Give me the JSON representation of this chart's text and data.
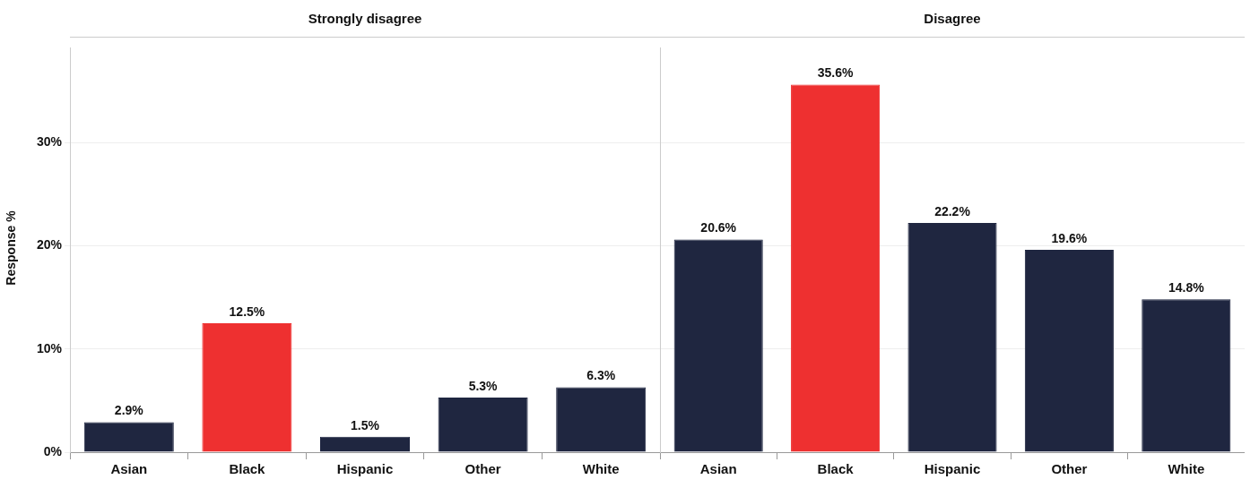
{
  "chart_data": [
    {
      "type": "bar",
      "title": "Strongly disagree",
      "ylabel": "Response %",
      "categories": [
        "Asian",
        "Black",
        "Hispanic",
        "Other",
        "White"
      ],
      "values": [
        2.9,
        12.5,
        1.5,
        5.3,
        6.3
      ],
      "colors": [
        "#1f2640",
        "#ee3030",
        "#1f2640",
        "#1f2640",
        "#1f2640"
      ],
      "value_labels": [
        "2.9%",
        "12.5%",
        "1.5%",
        "5.3%",
        "6.3%"
      ],
      "ylim": [
        0,
        39.2
      ],
      "yticks": [
        {
          "value": 0,
          "label": "0%"
        },
        {
          "value": 10,
          "label": "10%"
        },
        {
          "value": 20,
          "label": "20%"
        },
        {
          "value": 30,
          "label": "30%"
        }
      ],
      "grid": "y",
      "legend": false
    },
    {
      "type": "bar",
      "title": "Disagree",
      "categories": [
        "Asian",
        "Black",
        "Hispanic",
        "Other",
        "White"
      ],
      "values": [
        20.6,
        35.6,
        22.2,
        19.6,
        14.8
      ],
      "colors": [
        "#1f2640",
        "#ee3030",
        "#1f2640",
        "#1f2640",
        "#1f2640"
      ],
      "value_labels": [
        "20.6%",
        "35.6%",
        "22.2%",
        "19.6%",
        "14.8%"
      ],
      "ylim": [
        0,
        39.2
      ],
      "yticks": [
        {
          "value": 0,
          "label": null
        },
        {
          "value": 10,
          "label": null
        },
        {
          "value": 20,
          "label": null
        },
        {
          "value": 30,
          "label": null
        }
      ],
      "grid": "y",
      "legend": false,
      "tick_labels": "x"
    }
  ]
}
